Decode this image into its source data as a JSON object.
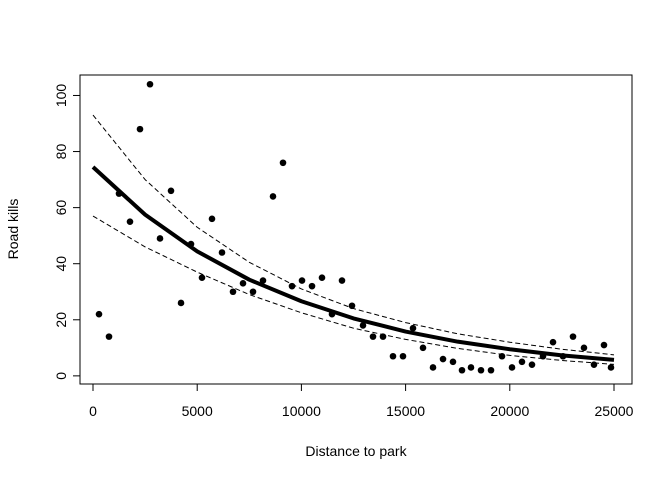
{
  "chart_data": {
    "type": "scatter",
    "xlabel": "Distance to park",
    "ylabel": "Road kills",
    "x": [
      288,
      768,
      1248,
      1775,
      2255,
      2735,
      3215,
      3743,
      4223,
      4702,
      5230,
      5710,
      6190,
      6718,
      7198,
      7678,
      8157,
      8637,
      9117,
      9549,
      10029,
      10509,
      10988,
      11468,
      11948,
      12428,
      12956,
      13436,
      13916,
      14395,
      14875,
      15355,
      15835,
      16315,
      16795,
      17274,
      17706,
      18138,
      18618,
      19098,
      19626,
      20106,
      20585,
      21065,
      21593,
      22073,
      22553,
      23033,
      23560,
      24040,
      24520,
      24856
    ],
    "values": [
      22,
      14,
      65,
      55,
      88,
      104,
      49,
      66,
      26,
      47,
      35,
      56,
      44,
      30,
      33,
      30,
      34,
      64,
      76,
      32,
      34,
      32,
      35,
      22,
      34,
      25,
      18,
      14,
      14,
      7,
      7,
      17,
      10,
      3,
      6,
      5,
      2,
      3,
      2,
      2,
      7,
      3,
      5,
      4,
      7,
      12,
      7,
      14,
      10,
      4,
      11,
      3
    ],
    "color": "#000000",
    "fit": {
      "x": [
        0,
        2500,
        5000,
        7500,
        10000,
        12500,
        15000,
        17500,
        20000,
        22500,
        25000
      ],
      "values": [
        74.5,
        57.5,
        44.4,
        34.3,
        26.6,
        20.5,
        15.8,
        12.2,
        9.5,
        7.3,
        5.7
      ],
      "upper": [
        93,
        70,
        53,
        40.5,
        31,
        24,
        19,
        15,
        12,
        9.5,
        7.5
      ],
      "lower": [
        57,
        46,
        37,
        29,
        22.5,
        17,
        13,
        9.8,
        7.3,
        5.5,
        4.1
      ]
    },
    "xlim": [
      -624,
      25864
    ],
    "ylim": [
      -2.9,
      107.3
    ],
    "xticks": [
      0,
      5000,
      10000,
      15000,
      20000,
      25000
    ],
    "yticks": [
      0,
      20,
      40,
      60,
      80,
      100
    ]
  }
}
